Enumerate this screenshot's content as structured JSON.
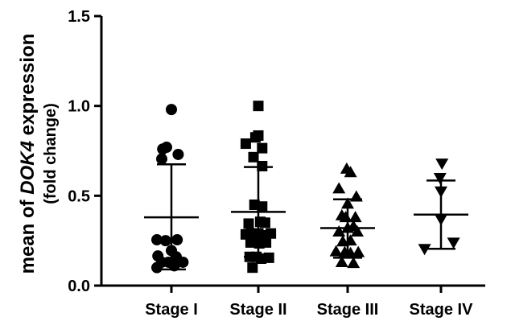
{
  "chart_data": {
    "type": "scatter",
    "categories": [
      "Stage I",
      "Stage II",
      "Stage III",
      "Stage IV"
    ],
    "ylabel_line1_prefix": "mean of ",
    "ylabel_line1_gene": "DOK4",
    "ylabel_line1_suffix": " expression",
    "ylabel_line2": "(fold change)",
    "ylim": [
      0,
      1.5
    ],
    "yticks": [
      "0.0",
      "0.5",
      "1.0",
      "1.5"
    ],
    "ytick_values": [
      0,
      0.5,
      1.0,
      1.5
    ],
    "grid": false,
    "marker_color": "#000000",
    "series": [
      {
        "category": "Stage I",
        "marker": "circle",
        "mean": 0.38,
        "sd_low": 0.09,
        "sd_high": 0.675,
        "points": [
          {
            "j": 0,
            "y": 0.98
          },
          {
            "j": -0.5,
            "y": 0.77
          },
          {
            "j": -0.9,
            "y": 0.76
          },
          {
            "j": 0.7,
            "y": 0.73
          },
          {
            "j": -1.0,
            "y": 0.705
          },
          {
            "j": -1.5,
            "y": 0.255
          },
          {
            "j": -0.6,
            "y": 0.25
          },
          {
            "j": 0.6,
            "y": 0.255
          },
          {
            "j": 0,
            "y": 0.195
          },
          {
            "j": -1.4,
            "y": 0.165
          },
          {
            "j": 0.5,
            "y": 0.16
          },
          {
            "j": -1.0,
            "y": 0.13
          },
          {
            "j": -0.3,
            "y": 0.13
          },
          {
            "j": 1.2,
            "y": 0.13
          },
          {
            "j": -1.5,
            "y": 0.1
          },
          {
            "j": 0.3,
            "y": 0.11
          }
        ]
      },
      {
        "category": "Stage II",
        "marker": "square",
        "mean": 0.41,
        "sd_low": 0.16,
        "sd_high": 0.66,
        "points": [
          {
            "j": 0,
            "y": 1.0
          },
          {
            "j": 0,
            "y": 0.835
          },
          {
            "j": -0.3,
            "y": 0.825
          },
          {
            "j": -1.3,
            "y": 0.79
          },
          {
            "j": 0.4,
            "y": 0.765
          },
          {
            "j": -0.5,
            "y": 0.715
          },
          {
            "j": 0.4,
            "y": 0.665
          },
          {
            "j": -0.4,
            "y": 0.45
          },
          {
            "j": 0.4,
            "y": 0.44
          },
          {
            "j": -1.0,
            "y": 0.345
          },
          {
            "j": 0.2,
            "y": 0.355
          },
          {
            "j": 0.7,
            "y": 0.35
          },
          {
            "j": -1.3,
            "y": 0.285
          },
          {
            "j": -0.7,
            "y": 0.29
          },
          {
            "j": 0,
            "y": 0.29
          },
          {
            "j": 0.6,
            "y": 0.28
          },
          {
            "j": 1.3,
            "y": 0.29
          },
          {
            "j": -0.8,
            "y": 0.24
          },
          {
            "j": 0.1,
            "y": 0.235
          },
          {
            "j": 0.8,
            "y": 0.24
          },
          {
            "j": -0.9,
            "y": 0.16
          },
          {
            "j": -0.2,
            "y": 0.16
          },
          {
            "j": 0.3,
            "y": 0.15
          },
          {
            "j": 1.1,
            "y": 0.155
          },
          {
            "j": -0.6,
            "y": 0.1
          }
        ]
      },
      {
        "category": "Stage III",
        "marker": "triangle-up",
        "mean": 0.32,
        "sd_low": 0.155,
        "sd_high": 0.48,
        "points": [
          {
            "j": -0.1,
            "y": 0.65
          },
          {
            "j": 0.3,
            "y": 0.63
          },
          {
            "j": -0.9,
            "y": 0.54
          },
          {
            "j": 0.9,
            "y": 0.495
          },
          {
            "j": 0,
            "y": 0.455
          },
          {
            "j": -0.6,
            "y": 0.39
          },
          {
            "j": -0.2,
            "y": 0.38
          },
          {
            "j": 0.8,
            "y": 0.38
          },
          {
            "j": 0,
            "y": 0.32
          },
          {
            "j": 0.6,
            "y": 0.33
          },
          {
            "j": -0.9,
            "y": 0.3
          },
          {
            "j": 1.0,
            "y": 0.3
          },
          {
            "j": -0.5,
            "y": 0.245
          },
          {
            "j": 0.3,
            "y": 0.25
          },
          {
            "j": -1.2,
            "y": 0.19
          },
          {
            "j": -0.3,
            "y": 0.185
          },
          {
            "j": 0.3,
            "y": 0.18
          },
          {
            "j": 1.1,
            "y": 0.185
          },
          {
            "j": -0.6,
            "y": 0.13
          },
          {
            "j": 0.6,
            "y": 0.125
          }
        ]
      },
      {
        "category": "Stage IV",
        "marker": "triangle-down",
        "mean": 0.395,
        "sd_low": 0.205,
        "sd_high": 0.585,
        "points": [
          {
            "j": 0.1,
            "y": 0.68
          },
          {
            "j": -0.1,
            "y": 0.6
          },
          {
            "j": 0,
            "y": 0.525
          },
          {
            "j": 0,
            "y": 0.37
          },
          {
            "j": -1.7,
            "y": 0.205
          },
          {
            "j": 1.3,
            "y": 0.24
          }
        ]
      }
    ]
  }
}
